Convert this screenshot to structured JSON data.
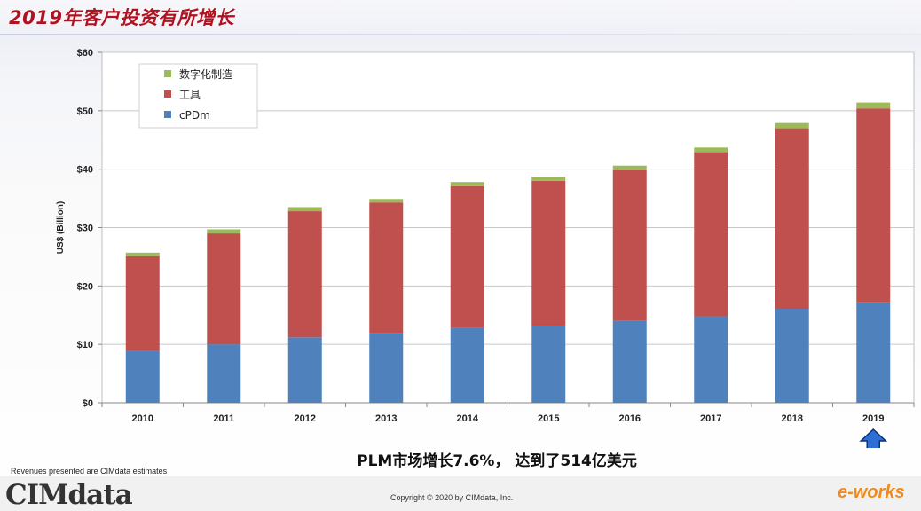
{
  "slide": {
    "title": "2019年客户投资有所增长",
    "subtitle": "PLM市场增长7.6%， 达到了514亿美元",
    "footnote": "Revenues presented are CIMdata estimates",
    "copyright": "Copyright © 2020 by CIMdata, Inc.",
    "logo_text": "CIMdata",
    "watermark": "e-works"
  },
  "colors": {
    "cpdm": "#4f81bd",
    "tools": "#c0504d",
    "digital_manufacturing": "#9bbb59",
    "title": "#b01220",
    "arrow": "#2e6fd6"
  },
  "chart_data": {
    "type": "bar",
    "stacked": true,
    "categories": [
      "2010",
      "2011",
      "2012",
      "2013",
      "2014",
      "2015",
      "2016",
      "2017",
      "2018",
      "2019"
    ],
    "series": [
      {
        "name": "cPDm",
        "values": [
          8.9,
          10.0,
          11.2,
          11.9,
          12.9,
          13.1,
          14.0,
          14.8,
          16.1,
          17.2
        ]
      },
      {
        "name": "工具",
        "values": [
          16.2,
          19.0,
          21.6,
          22.4,
          24.2,
          24.9,
          25.8,
          28.1,
          30.9,
          33.2
        ]
      },
      {
        "name": "数字化制造",
        "values": [
          0.6,
          0.7,
          0.7,
          0.6,
          0.7,
          0.7,
          0.8,
          0.8,
          0.9,
          1.0
        ]
      }
    ],
    "ylabel": "US$ (Billion)",
    "ylim": [
      0,
      60
    ],
    "yticks": [
      "$0",
      "$10",
      "$20",
      "$30",
      "$40",
      "$50",
      "$60"
    ],
    "ytick_values": [
      0,
      10,
      20,
      30,
      40,
      50,
      60
    ],
    "grid": true,
    "legend": {
      "placement": "top-left",
      "entries": [
        "数字化制造",
        "工具",
        "cPDm"
      ]
    },
    "highlight": {
      "category": "2019",
      "marker": "up-arrow-icon"
    }
  }
}
